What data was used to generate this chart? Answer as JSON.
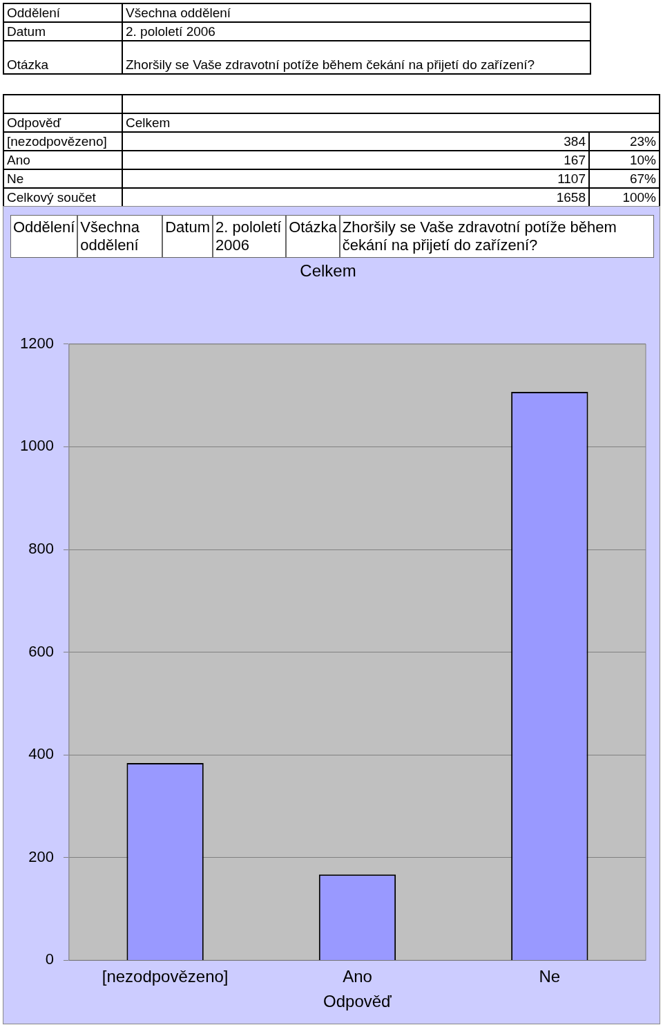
{
  "chart_data": {
    "type": "bar",
    "title": "Celkem",
    "xlabel": "Odpověď",
    "categories": [
      "[nezodpovězeno]",
      "Ano",
      "Ne"
    ],
    "values": [
      384,
      167,
      1107
    ],
    "color": "#9999ff",
    "ylim": [
      0,
      1200
    ],
    "yticks": [
      0,
      200,
      400,
      600,
      800,
      1000,
      1200
    ],
    "grid": "y",
    "annotations": [
      "Oddělení",
      "Všechna oddělení",
      "Datum",
      "2. pololetí 2006",
      "Otázka",
      "Zhoršily se Vaše zdravotní potíže během čekání na přijetí do zařízení?",
      "Odpověď",
      "Celkem",
      "23%",
      "10%",
      "67%",
      "Celkový součet",
      "1658",
      "100%",
      "384",
      "167",
      "1107"
    ]
  }
}
